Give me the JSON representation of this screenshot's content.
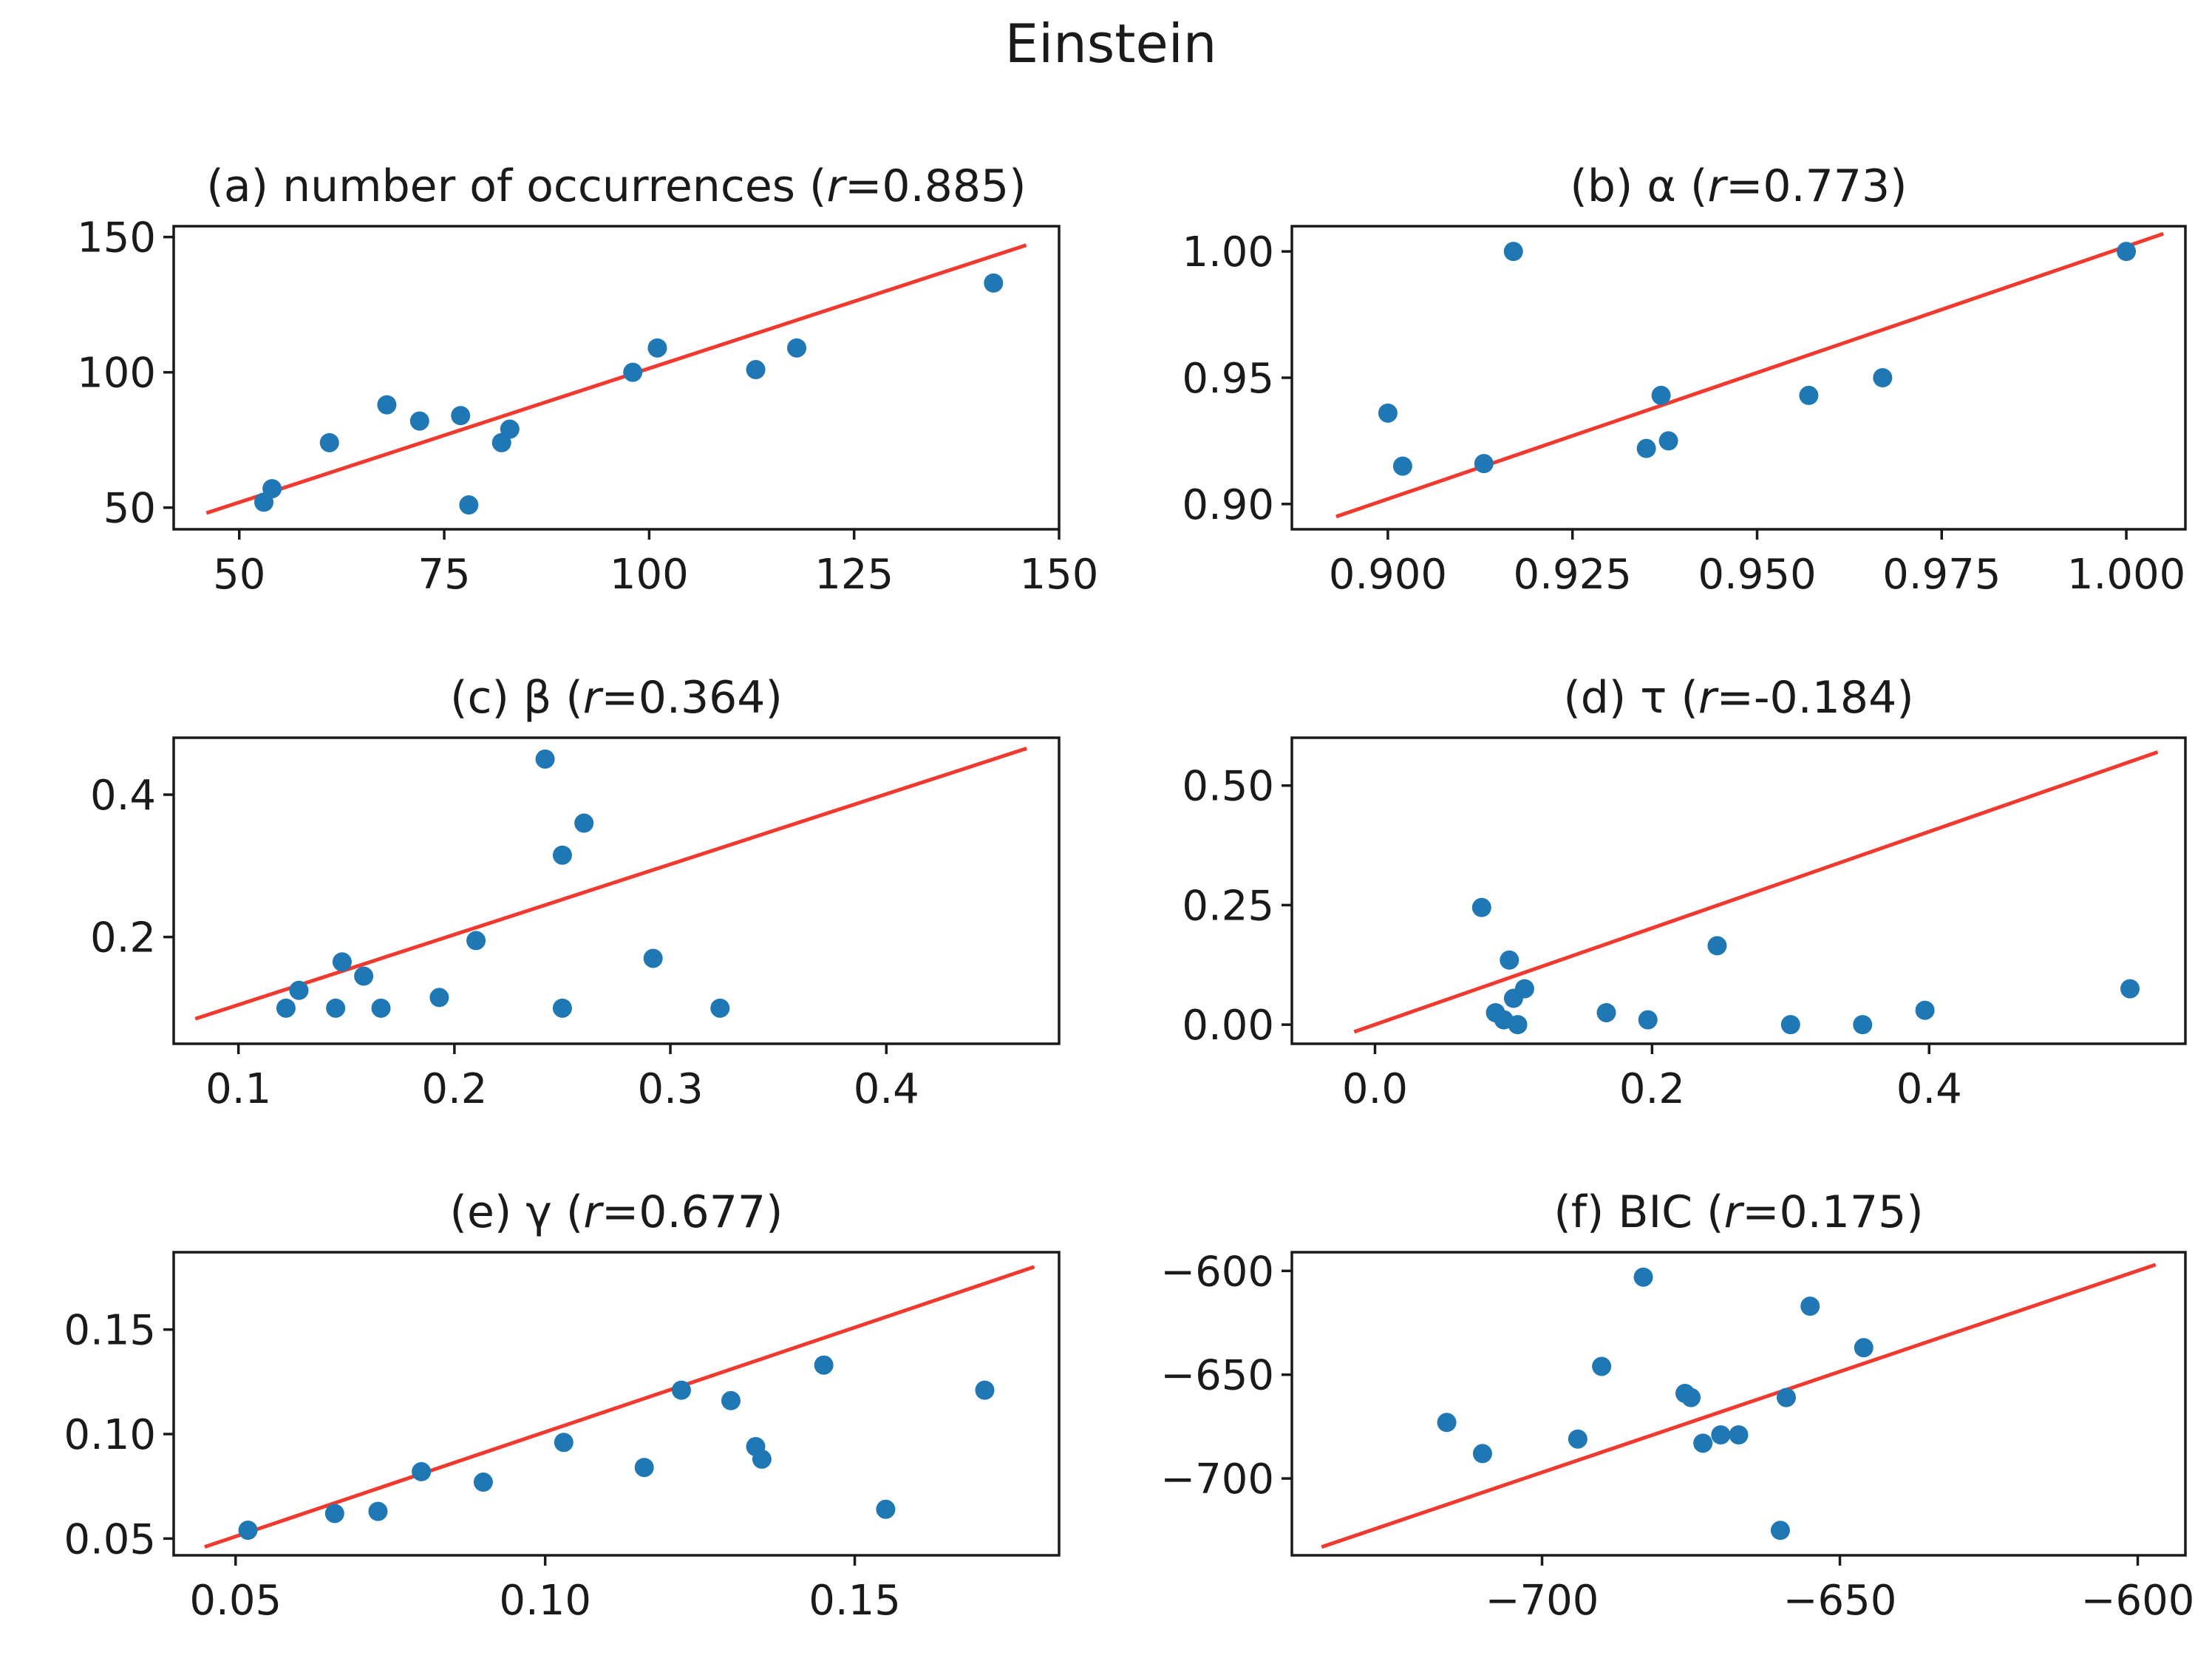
{
  "figure_title": "Einstein",
  "colors": {
    "points": "#1f77b4",
    "fit_line": "#f03a30",
    "axes": "#1a1a1a"
  },
  "chart_data": [
    {
      "id": "a",
      "type": "scatter",
      "title_prefix": "(a) number of occurrences (",
      "title_var": "r",
      "title_suffix": "=0.885)",
      "xlim": [
        42,
        150
      ],
      "ylim": [
        42,
        154
      ],
      "xticks": [
        50,
        75,
        100,
        125,
        150
      ],
      "xtick_labels": [
        "50",
        "75",
        "100",
        "125",
        "150"
      ],
      "yticks": [
        50,
        100,
        150
      ],
      "ytick_labels": [
        "50",
        "100",
        "150"
      ],
      "fit_line": [
        [
          46,
          48
        ],
        [
          146,
          147
        ]
      ],
      "points": [
        [
          53,
          52
        ],
        [
          54,
          57
        ],
        [
          61,
          74
        ],
        [
          68,
          88
        ],
        [
          72,
          82
        ],
        [
          77,
          84
        ],
        [
          82,
          74
        ],
        [
          83,
          79
        ],
        [
          78,
          51
        ],
        [
          98,
          100
        ],
        [
          101,
          109
        ],
        [
          113,
          101
        ],
        [
          118,
          109
        ],
        [
          142,
          133
        ]
      ]
    },
    {
      "id": "b",
      "type": "scatter",
      "title_prefix": "(b) α (",
      "title_var": "r",
      "title_suffix": "=0.773)",
      "xlim": [
        0.887,
        1.008
      ],
      "ylim": [
        0.89,
        1.01
      ],
      "xticks": [
        0.9,
        0.925,
        0.95,
        0.975,
        1.0
      ],
      "xtick_labels": [
        "0.900",
        "0.925",
        "0.950",
        "0.975",
        "1.000"
      ],
      "yticks": [
        0.9,
        0.95,
        1.0
      ],
      "ytick_labels": [
        "0.90",
        "0.95",
        "1.00"
      ],
      "fit_line": [
        [
          0.893,
          0.895
        ],
        [
          1.005,
          1.007
        ]
      ],
      "points": [
        [
          0.9,
          0.936
        ],
        [
          0.902,
          0.915
        ],
        [
          0.913,
          0.916
        ],
        [
          0.917,
          1.0
        ],
        [
          0.935,
          0.922
        ],
        [
          0.937,
          0.943
        ],
        [
          0.938,
          0.925
        ],
        [
          0.957,
          0.943
        ],
        [
          0.967,
          0.95
        ],
        [
          1.0,
          1.0
        ]
      ]
    },
    {
      "id": "c",
      "type": "scatter",
      "title_prefix": "(c) β (",
      "title_var": "r",
      "title_suffix": "=0.364)",
      "xlim": [
        0.07,
        0.48
      ],
      "ylim": [
        0.05,
        0.48
      ],
      "xticks": [
        0.1,
        0.2,
        0.3,
        0.4
      ],
      "xtick_labels": [
        "0.1",
        "0.2",
        "0.3",
        "0.4"
      ],
      "yticks": [
        0.2,
        0.4
      ],
      "ytick_labels": [
        "0.2",
        "0.4"
      ],
      "fit_line": [
        [
          0.08,
          0.085
        ],
        [
          0.465,
          0.465
        ]
      ],
      "points": [
        [
          0.122,
          0.1
        ],
        [
          0.128,
          0.125
        ],
        [
          0.145,
          0.1
        ],
        [
          0.148,
          0.165
        ],
        [
          0.158,
          0.145
        ],
        [
          0.166,
          0.1
        ],
        [
          0.193,
          0.115
        ],
        [
          0.21,
          0.195
        ],
        [
          0.242,
          0.45
        ],
        [
          0.25,
          0.315
        ],
        [
          0.25,
          0.1
        ],
        [
          0.26,
          0.36
        ],
        [
          0.292,
          0.17
        ],
        [
          0.323,
          0.1
        ]
      ]
    },
    {
      "id": "d",
      "type": "scatter",
      "title_prefix": "(d) τ (",
      "title_var": "r",
      "title_suffix": "=-0.184)",
      "xlim": [
        -0.06,
        0.585
      ],
      "ylim": [
        -0.04,
        0.6
      ],
      "xticks": [
        0.0,
        0.2,
        0.4
      ],
      "xtick_labels": [
        "0.0",
        "0.2",
        "0.4"
      ],
      "yticks": [
        0.0,
        0.25,
        0.5
      ],
      "ytick_labels": [
        "0.00",
        "0.25",
        "0.50"
      ],
      "fit_line": [
        [
          -0.015,
          -0.015
        ],
        [
          0.565,
          0.57
        ]
      ],
      "points": [
        [
          0.077,
          0.245
        ],
        [
          0.087,
          0.025
        ],
        [
          0.093,
          0.01
        ],
        [
          0.097,
          0.135
        ],
        [
          0.1,
          0.055
        ],
        [
          0.103,
          0.0
        ],
        [
          0.108,
          0.075
        ],
        [
          0.167,
          0.025
        ],
        [
          0.197,
          0.01
        ],
        [
          0.247,
          0.165
        ],
        [
          0.3,
          0.0
        ],
        [
          0.352,
          0.0
        ],
        [
          0.397,
          0.03
        ],
        [
          0.545,
          0.075
        ]
      ]
    },
    {
      "id": "e",
      "type": "scatter",
      "title_prefix": "(e) γ (",
      "title_var": "r",
      "title_suffix": "=0.677)",
      "xlim": [
        0.04,
        0.183
      ],
      "ylim": [
        0.042,
        0.187
      ],
      "xticks": [
        0.05,
        0.1,
        0.15
      ],
      "xtick_labels": [
        "0.05",
        "0.10",
        "0.15"
      ],
      "yticks": [
        0.05,
        0.1,
        0.15
      ],
      "ytick_labels": [
        "0.05",
        "0.10",
        "0.15"
      ],
      "fit_line": [
        [
          0.045,
          0.046
        ],
        [
          0.179,
          0.18
        ]
      ],
      "points": [
        [
          0.052,
          0.054
        ],
        [
          0.066,
          0.062
        ],
        [
          0.073,
          0.063
        ],
        [
          0.08,
          0.082
        ],
        [
          0.09,
          0.077
        ],
        [
          0.103,
          0.096
        ],
        [
          0.116,
          0.084
        ],
        [
          0.122,
          0.121
        ],
        [
          0.13,
          0.116
        ],
        [
          0.134,
          0.094
        ],
        [
          0.135,
          0.088
        ],
        [
          0.145,
          0.133
        ],
        [
          0.155,
          0.064
        ],
        [
          0.171,
          0.121
        ]
      ]
    },
    {
      "id": "f",
      "type": "scatter",
      "title_prefix": "(f) BIC (",
      "title_var": "r",
      "title_suffix": "=0.175)",
      "xlim": [
        -742,
        -592
      ],
      "ylim": [
        -737,
        -591
      ],
      "xticks": [
        -700,
        -650,
        -600
      ],
      "xtick_labels": [
        "−700",
        "−650",
        "−600"
      ],
      "yticks": [
        -700,
        -650,
        -600
      ],
      "ytick_labels": [
        "−700",
        "−650",
        "−600"
      ],
      "fit_line": [
        [
          -737,
          -733
        ],
        [
          -597,
          -597
        ]
      ],
      "points": [
        [
          -716,
          -673
        ],
        [
          -710,
          -688
        ],
        [
          -694,
          -681
        ],
        [
          -690,
          -646
        ],
        [
          -683,
          -603
        ],
        [
          -676,
          -659
        ],
        [
          -675,
          -661
        ],
        [
          -673,
          -683
        ],
        [
          -670,
          -679
        ],
        [
          -667,
          -679
        ],
        [
          -659,
          -661
        ],
        [
          -660,
          -725
        ],
        [
          -655,
          -617
        ],
        [
          -646,
          -637
        ]
      ]
    }
  ]
}
